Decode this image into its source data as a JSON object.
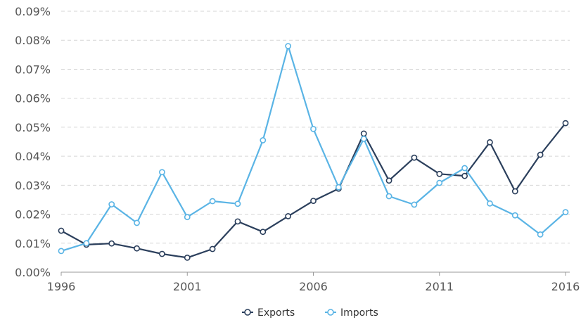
{
  "chart_data": {
    "type": "line",
    "title": "",
    "xlabel": "",
    "ylabel": "",
    "x": [
      1996,
      1997,
      1998,
      1999,
      2000,
      2001,
      2002,
      2003,
      2004,
      2005,
      2006,
      2007,
      2008,
      2009,
      2010,
      2011,
      2012,
      2013,
      2014,
      2015,
      2016
    ],
    "x_ticks": [
      1996,
      2001,
      2006,
      2011,
      2016
    ],
    "x_tick_labels": [
      "1996",
      "2001",
      "2006",
      "2011",
      "2016"
    ],
    "ylim": [
      0,
      0.09
    ],
    "y_ticks": [
      0,
      0.01,
      0.02,
      0.03,
      0.04,
      0.05,
      0.06,
      0.07,
      0.08,
      0.09
    ],
    "y_tick_labels": [
      "0.00%",
      "0.01%",
      "0.02%",
      "0.03%",
      "0.04%",
      "0.05%",
      "0.06%",
      "0.07%",
      "0.08%",
      "0.09%"
    ],
    "y_unit": "%",
    "grid": true,
    "legend_position": "bottom",
    "series": [
      {
        "name": "Exports",
        "color": "#2b3f5c",
        "values": [
          0.0143,
          0.0095,
          0.0099,
          0.0082,
          0.0063,
          0.005,
          0.008,
          0.0175,
          0.0139,
          0.0193,
          0.0246,
          0.0288,
          0.0478,
          0.0316,
          0.0395,
          0.0339,
          0.0332,
          0.0448,
          0.0279,
          0.0405,
          0.0514
        ]
      },
      {
        "name": "Imports",
        "color": "#5ab4e5",
        "values": [
          0.0073,
          0.01,
          0.0234,
          0.017,
          0.0345,
          0.019,
          0.0245,
          0.0236,
          0.0455,
          0.078,
          0.0494,
          0.0293,
          0.046,
          0.0262,
          0.0233,
          0.0308,
          0.0359,
          0.0237,
          0.0196,
          0.013,
          0.0207
        ]
      }
    ]
  }
}
